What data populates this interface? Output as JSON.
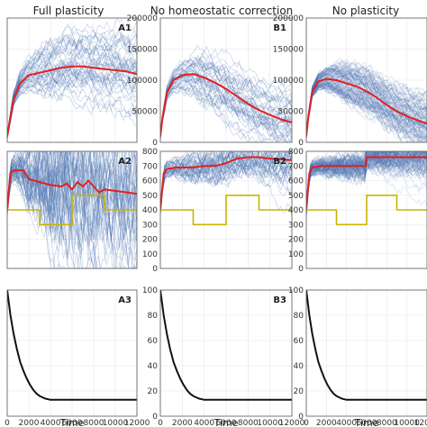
{
  "columns": [
    "Full plasticity",
    "No homeostatic correction",
    "No plasticity"
  ],
  "colors": {
    "traces": "#4c72b0",
    "mean": "#e02020",
    "target": "#c8b400",
    "decay": "#111111",
    "grid": "#e6e6e6"
  },
  "chart_data": [
    {
      "type": "line",
      "panel": "A1",
      "column": 0,
      "row": 0,
      "ylim": [
        0,
        200000
      ],
      "yticks": [],
      "xlim": [
        0,
        12000
      ],
      "xticks": [],
      "series": [
        {
          "role": "mean",
          "x": [
            0,
            200,
            600,
            1200,
            2000,
            3000,
            4000,
            5000,
            6000,
            7000,
            8000,
            9000,
            10000,
            11000,
            12000
          ],
          "values": [
            10000,
            30000,
            70000,
            95000,
            108000,
            112000,
            116000,
            120000,
            122000,
            122000,
            120000,
            118000,
            116000,
            114000,
            110000
          ]
        }
      ],
      "traces": {
        "count": 45,
        "spread_start": 5000,
        "spread_end": 45000,
        "low_tail": 20000
      }
    },
    {
      "type": "line",
      "panel": "B1",
      "column": 1,
      "row": 0,
      "ylim": [
        0,
        200000
      ],
      "yticks": [
        "0",
        "50000",
        "100000",
        "150000",
        "200000"
      ],
      "xlim": [
        0,
        12000
      ],
      "xticks": [],
      "series": [
        {
          "role": "mean",
          "x": [
            0,
            200,
            600,
            1200,
            2000,
            3000,
            4000,
            5000,
            6000,
            7000,
            8000,
            9000,
            10000,
            11000,
            12000
          ],
          "values": [
            10000,
            40000,
            80000,
            100000,
            108000,
            110000,
            104000,
            96000,
            86000,
            74000,
            62000,
            52000,
            44000,
            37000,
            32000
          ]
        }
      ],
      "traces": {
        "count": 45,
        "spread_start": 5000,
        "spread_end": 40000,
        "low_tail": 20000
      }
    },
    {
      "type": "line",
      "panel": "",
      "column": 2,
      "row": 0,
      "ylim": [
        0,
        200000
      ],
      "yticks": [
        "0",
        "50000",
        "100000",
        "150000",
        "200000"
      ],
      "xlim": [
        0,
        12000
      ],
      "xticks": [],
      "series": [
        {
          "role": "mean",
          "x": [
            0,
            200,
            600,
            1200,
            2000,
            3000,
            4000,
            5000,
            6000,
            7000,
            8000,
            9000,
            10000,
            11000,
            12000
          ],
          "values": [
            10000,
            40000,
            82000,
            98000,
            102000,
            100000,
            95000,
            90000,
            82000,
            72000,
            60000,
            50000,
            42000,
            36000,
            30000
          ]
        }
      ],
      "traces": {
        "count": 110,
        "spread_start": 5000,
        "spread_end": 30000,
        "low_tail": 15000
      }
    },
    {
      "type": "line",
      "panel": "A2",
      "column": 0,
      "row": 1,
      "ylim": [
        0,
        800
      ],
      "yticks": [],
      "xlim": [
        0,
        12000
      ],
      "xticks": [],
      "series": [
        {
          "role": "mean",
          "x": [
            0,
            300,
            600,
            1500,
            2000,
            3000,
            4000,
            5000,
            5500,
            6000,
            6500,
            7000,
            7500,
            8000,
            8500,
            9000,
            10000,
            11000,
            12000
          ],
          "values": [
            400,
            650,
            670,
            670,
            610,
            590,
            570,
            560,
            580,
            540,
            590,
            560,
            600,
            560,
            520,
            540,
            530,
            520,
            510
          ]
        },
        {
          "role": "target",
          "x": [
            0,
            3000,
            3000,
            6000,
            6000,
            9000,
            9000,
            12000
          ],
          "values": [
            400,
            400,
            300,
            300,
            500,
            500,
            400,
            400
          ]
        }
      ],
      "traces": {
        "count": 55,
        "spread_start": 30,
        "spread_end": 300,
        "low_tail": 250
      }
    },
    {
      "type": "line",
      "panel": "B2",
      "column": 1,
      "row": 1,
      "ylim": [
        0,
        800
      ],
      "yticks": [
        "0",
        "100",
        "200",
        "300",
        "400",
        "500",
        "600",
        "700",
        "800"
      ],
      "xlim": [
        0,
        12000
      ],
      "xticks": [],
      "series": [
        {
          "role": "mean",
          "x": [
            0,
            300,
            600,
            1500,
            2000,
            3000,
            4000,
            5000,
            6000,
            7000,
            8000,
            9000,
            10000,
            11000,
            12000
          ],
          "values": [
            400,
            650,
            680,
            690,
            690,
            690,
            700,
            700,
            720,
            750,
            760,
            760,
            750,
            745,
            740
          ]
        },
        {
          "role": "target",
          "x": [
            0,
            3000,
            3000,
            6000,
            6000,
            9000,
            9000,
            12000
          ],
          "values": [
            400,
            400,
            300,
            300,
            500,
            500,
            400,
            400
          ]
        }
      ],
      "traces": {
        "count": 45,
        "spread_start": 30,
        "spread_end": 80,
        "low_tail": 60
      }
    },
    {
      "type": "line",
      "panel": "",
      "column": 2,
      "row": 1,
      "ylim": [
        0,
        800
      ],
      "yticks": [
        "0",
        "100",
        "200",
        "300",
        "400",
        "500",
        "600",
        "700",
        "800"
      ],
      "xlim": [
        0,
        12000
      ],
      "xticks": [],
      "series": [
        {
          "role": "mean",
          "x": [
            0,
            300,
            600,
            1500,
            2000,
            3000,
            4000,
            5000,
            5900,
            6000,
            7000,
            8000,
            9000,
            10000,
            11000,
            12000
          ],
          "values": [
            400,
            650,
            690,
            700,
            700,
            700,
            700,
            700,
            700,
            760,
            760,
            760,
            760,
            760,
            760,
            760
          ]
        },
        {
          "role": "target",
          "x": [
            0,
            3000,
            3000,
            6000,
            6000,
            9000,
            9000,
            12000
          ],
          "values": [
            400,
            400,
            300,
            300,
            500,
            500,
            400,
            400
          ]
        }
      ],
      "traces": {
        "count": 110,
        "spread_start": 30,
        "spread_end": 60,
        "low_tail": 40
      }
    },
    {
      "type": "line",
      "panel": "A3",
      "column": 0,
      "row": 2,
      "ylim": [
        0,
        100
      ],
      "yticks": [],
      "xlim": [
        0,
        12000
      ],
      "xticks": [
        "0",
        "2000",
        "4000",
        "6000",
        "8000",
        "10000",
        "12000"
      ],
      "xlabel": "Time",
      "series": [
        {
          "role": "decay",
          "x": [
            0,
            300,
            600,
            900,
            1200,
            1500,
            1800,
            2100,
            2400,
            2700,
            3000,
            3500,
            4000,
            5000,
            6000,
            8000,
            10000,
            12000
          ],
          "values": [
            100,
            80,
            65,
            53,
            43,
            36,
            30,
            25,
            21,
            18,
            16,
            14,
            13,
            13,
            13,
            13,
            13,
            13
          ]
        }
      ]
    },
    {
      "type": "line",
      "panel": "B3",
      "column": 1,
      "row": 2,
      "ylim": [
        0,
        100
      ],
      "yticks": [
        "0",
        "20",
        "40",
        "60",
        "80",
        "100"
      ],
      "xlim": [
        0,
        12000
      ],
      "xticks": [
        "0",
        "2000",
        "4000",
        "6000",
        "8000",
        "10000",
        "12000"
      ],
      "xlabel": "Time",
      "series": [
        {
          "role": "decay",
          "x": [
            0,
            300,
            600,
            900,
            1200,
            1500,
            1800,
            2100,
            2400,
            2700,
            3000,
            3500,
            4000,
            5000,
            6000,
            8000,
            10000,
            12000
          ],
          "values": [
            100,
            80,
            65,
            53,
            43,
            36,
            30,
            25,
            21,
            18,
            16,
            14,
            13,
            13,
            13,
            13,
            13,
            13
          ]
        }
      ]
    },
    {
      "type": "line",
      "panel": "",
      "column": 2,
      "row": 2,
      "ylim": [
        0,
        100
      ],
      "yticks": [
        "0",
        "20",
        "40",
        "60",
        "80",
        "100"
      ],
      "xlim": [
        0,
        12000
      ],
      "xticks": [
        "0",
        "2000",
        "4000",
        "6000",
        "8000",
        "10000",
        "12000"
      ],
      "xlabel": "Time",
      "series": [
        {
          "role": "decay",
          "x": [
            0,
            300,
            600,
            900,
            1200,
            1500,
            1800,
            2100,
            2400,
            2700,
            3000,
            3500,
            4000,
            5000,
            6000,
            8000,
            10000,
            12000
          ],
          "values": [
            100,
            80,
            65,
            53,
            43,
            36,
            30,
            25,
            21,
            18,
            16,
            14,
            13,
            13,
            13,
            13,
            13,
            13
          ]
        }
      ]
    }
  ]
}
